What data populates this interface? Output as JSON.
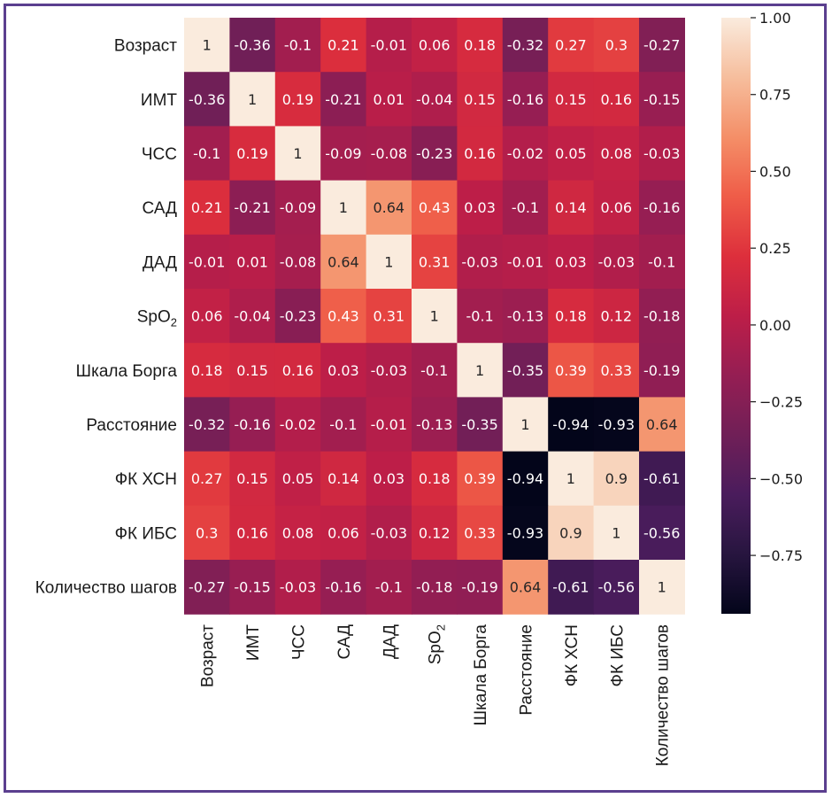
{
  "chart_data": {
    "type": "heatmap",
    "labels": [
      "Возраст",
      "ИМТ",
      "ЧСС",
      "САД",
      "ДАД",
      "SpO2",
      "Шкала Борга",
      "Расстояние",
      "ФК ХСН",
      "ФК ИБС",
      "Количество шагов"
    ],
    "matrix": [
      [
        1,
        -0.36,
        -0.1,
        0.21,
        -0.01,
        0.06,
        0.18,
        -0.32,
        0.27,
        0.3,
        -0.27
      ],
      [
        -0.36,
        1,
        0.19,
        -0.21,
        0.01,
        -0.04,
        0.15,
        -0.16,
        0.15,
        0.16,
        -0.15
      ],
      [
        -0.1,
        0.19,
        1,
        -0.09,
        -0.08,
        -0.23,
        0.16,
        -0.02,
        0.05,
        0.08,
        -0.03
      ],
      [
        0.21,
        -0.21,
        -0.09,
        1,
        0.64,
        0.43,
        0.03,
        -0.1,
        0.14,
        0.06,
        -0.16
      ],
      [
        -0.01,
        0.01,
        -0.08,
        0.64,
        1,
        0.31,
        -0.03,
        -0.01,
        0.03,
        -0.03,
        -0.1
      ],
      [
        0.06,
        -0.04,
        -0.23,
        0.43,
        0.31,
        1,
        -0.1,
        -0.13,
        0.18,
        0.12,
        -0.18
      ],
      [
        0.18,
        0.15,
        0.16,
        0.03,
        -0.03,
        -0.1,
        1,
        -0.35,
        0.39,
        0.33,
        -0.19
      ],
      [
        -0.32,
        -0.16,
        -0.02,
        -0.1,
        -0.01,
        -0.13,
        -0.35,
        1,
        -0.94,
        -0.93,
        0.64
      ],
      [
        0.27,
        0.15,
        0.05,
        0.14,
        0.03,
        0.18,
        0.39,
        -0.94,
        1,
        0.9,
        -0.61
      ],
      [
        0.3,
        0.16,
        0.08,
        0.06,
        -0.03,
        0.12,
        0.33,
        -0.93,
        0.9,
        1,
        -0.56
      ],
      [
        -0.27,
        -0.15,
        -0.03,
        -0.16,
        -0.1,
        -0.18,
        -0.19,
        0.64,
        -0.61,
        -0.56,
        1
      ]
    ],
    "colorbar": {
      "range": [
        -0.94,
        1
      ],
      "ticks": [
        1.0,
        0.75,
        0.5,
        0.25,
        0.0,
        -0.25,
        -0.5,
        -0.75
      ],
      "tick_labels": [
        "1.00",
        "0.75",
        "0.50",
        "0.25",
        "0.00",
        "−0.25",
        "−0.50",
        "−0.75"
      ],
      "colormap": "rocket",
      "placement": "right"
    },
    "title": "",
    "xlabel": "",
    "ylabel": ""
  },
  "colors": {
    "frame": "#5b3f8f",
    "light_text": "#ffffff",
    "dark_text": "#262626"
  }
}
